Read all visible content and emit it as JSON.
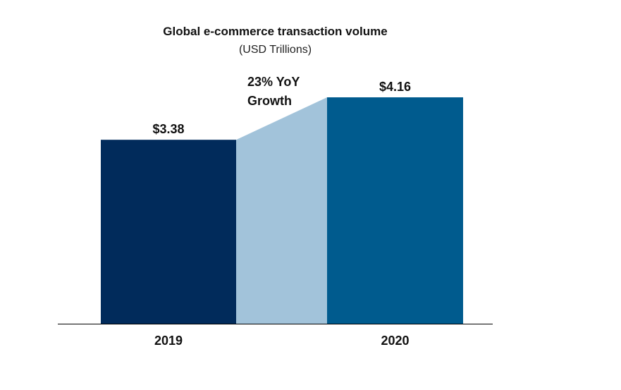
{
  "chart_data": {
    "type": "bar",
    "title": "Global e-commerce transaction volume",
    "subtitle": "(USD Trillions)",
    "categories": [
      "2019",
      "2020"
    ],
    "values": [
      3.38,
      4.16
    ],
    "data_labels": [
      "$3.38",
      "$4.16"
    ],
    "annotation": {
      "line1": "23% YoY",
      "line2": "Growth"
    },
    "ylim": [
      0,
      4.16
    ],
    "grid": false,
    "colors": {
      "bar_2019": "#012B5B",
      "bar_2020": "#005B8E",
      "bridge": "#A2C3DA",
      "axis": "#000000"
    }
  }
}
